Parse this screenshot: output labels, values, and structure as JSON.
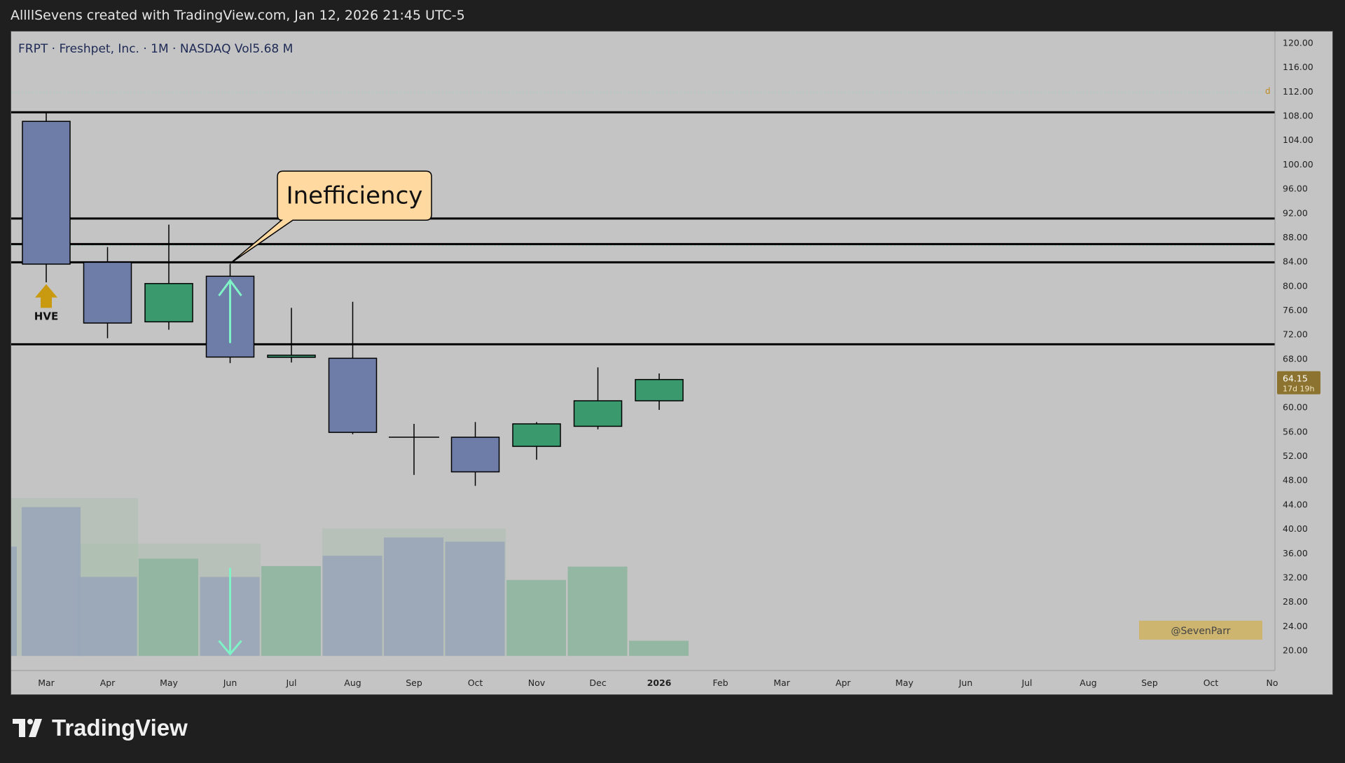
{
  "header": {
    "attribution": "AllllSevens created with TradingView.com, Jan 12, 2026 21:45 UTC-5"
  },
  "footer": {
    "brand": "TradingView"
  },
  "chart_data": {
    "type": "candlestick",
    "title": "FRPT · Freshpet, Inc. · 1M · NASDAQ",
    "volume_label": "Vol",
    "volume_value": "5.68 M",
    "y_ticks": [
      "120.00",
      "116.00",
      "112.00",
      "108.00",
      "104.00",
      "100.00",
      "96.00",
      "92.00",
      "88.00",
      "84.00",
      "80.00",
      "76.00",
      "72.00",
      "68.00",
      "64.00",
      "60.00",
      "56.00",
      "52.00",
      "48.00",
      "44.00",
      "40.00",
      "36.00",
      "32.00",
      "28.00",
      "24.00",
      "20.00"
    ],
    "ylim": [
      18,
      122
    ],
    "x_labels": [
      "Mar",
      "Apr",
      "May",
      "Jun",
      "Jul",
      "Aug",
      "Sep",
      "Oct",
      "Nov",
      "Dec",
      "2026",
      "Feb",
      "Mar",
      "Apr",
      "May",
      "Jun",
      "Jul",
      "Aug",
      "Sep",
      "Oct",
      "No"
    ],
    "candles": [
      {
        "open": 83.5,
        "high": 108.5,
        "low": 80.5,
        "close": 107.0,
        "color": "blue"
      },
      {
        "open": 83.8,
        "high": 86.3,
        "low": 71.3,
        "close": 73.8,
        "color": "blue"
      },
      {
        "open": 74.0,
        "high": 90.0,
        "low": 72.7,
        "close": 80.3,
        "color": "green"
      },
      {
        "open": 81.5,
        "high": 83.5,
        "low": 67.2,
        "close": 68.2,
        "color": "blue"
      },
      {
        "open": 68.3,
        "high": 76.3,
        "low": 67.3,
        "close": 68.5,
        "color": "green"
      },
      {
        "open": 68.0,
        "high": 77.3,
        "low": 55.5,
        "close": 55.8,
        "color": "blue"
      },
      {
        "open": 55.0,
        "high": 57.2,
        "low": 48.8,
        "close": 55.0,
        "color": "neutral"
      },
      {
        "open": 55.0,
        "high": 57.5,
        "low": 47.0,
        "close": 49.3,
        "color": "blue"
      },
      {
        "open": 53.5,
        "high": 57.5,
        "low": 51.3,
        "close": 57.2,
        "color": "green"
      },
      {
        "open": 56.8,
        "high": 66.5,
        "low": 56.3,
        "close": 61.0,
        "color": "green"
      },
      {
        "open": 61.0,
        "high": 65.5,
        "low": 59.5,
        "close": 64.5,
        "color": "green"
      }
    ],
    "volumes": [
      {
        "value": 43.5,
        "color": "blue"
      },
      {
        "value": 32.0,
        "color": "blue"
      },
      {
        "value": 35.0,
        "color": "green"
      },
      {
        "value": 32.0,
        "color": "blue"
      },
      {
        "value": 33.8,
        "color": "green"
      },
      {
        "value": 35.5,
        "color": "blue"
      },
      {
        "value": 38.5,
        "color": "blue"
      },
      {
        "value": 37.8,
        "color": "blue"
      },
      {
        "value": 31.5,
        "color": "green"
      },
      {
        "value": 33.7,
        "color": "green"
      },
      {
        "value": 21.5,
        "color": "green"
      }
    ],
    "volume_profile": [
      {
        "from": 19.0,
        "to": 45.0,
        "start_index": -0.5,
        "end_index": 1.0
      },
      {
        "from": 19.0,
        "to": 37.5,
        "start_index": 1.0,
        "end_index": 3.0
      },
      {
        "from": 19.0,
        "to": 40.0,
        "start_index": 5.0,
        "end_index": 7.0
      }
    ],
    "horizontal_levels": [
      108.5,
      91.0,
      86.8,
      83.8,
      70.3
    ],
    "dotted_levels": [
      111.8,
      86.5
    ],
    "current_price": "64.15",
    "countdown": "17d 19h",
    "current_value": 64.15,
    "annotation": {
      "text": "Inefficiency"
    },
    "markers": {
      "hve": "HVE"
    },
    "watermark": "@SevenParr",
    "colors": {
      "background": "#c4c4c4",
      "bearish": "#6e7da8",
      "bullish": "#3a9a6e",
      "volume_bearish": "#9aa7b8",
      "volume_bullish": "#8fb5a0",
      "arrow": "#7ff2c6",
      "hve_arrow": "#c99a10",
      "callout_fill": "#ffd9a0",
      "price_tag": "#8c7430"
    }
  }
}
